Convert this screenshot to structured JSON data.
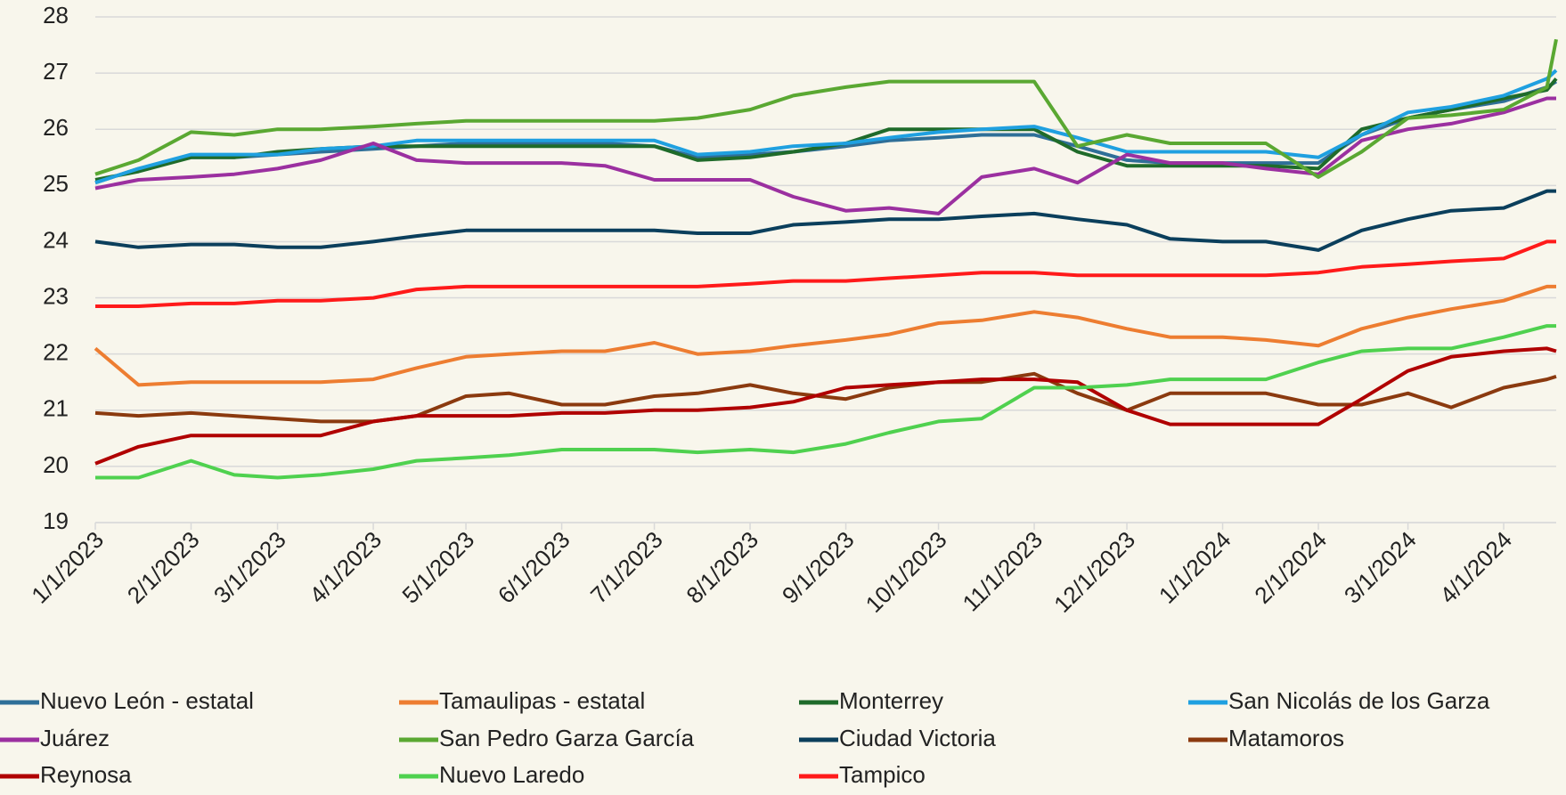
{
  "chart_data": {
    "type": "line",
    "x": [
      "1/1/2023",
      "1/15/2023",
      "2/1/2023",
      "2/15/2023",
      "3/1/2023",
      "3/15/2023",
      "4/1/2023",
      "4/15/2023",
      "5/1/2023",
      "5/15/2023",
      "6/1/2023",
      "6/15/2023",
      "7/1/2023",
      "7/15/2023",
      "8/1/2023",
      "8/15/2023",
      "9/1/2023",
      "9/15/2023",
      "10/1/2023",
      "10/15/2023",
      "11/1/2023",
      "11/15/2023",
      "12/1/2023",
      "12/15/2023",
      "1/1/2024",
      "1/15/2024",
      "2/1/2024",
      "2/15/2024",
      "3/1/2024",
      "3/15/2024",
      "4/1/2024",
      "4/15/2024",
      "4/18/2024"
    ],
    "xlim": [
      "1/1/2023",
      "4/18/2024"
    ],
    "xticks": [
      "1/1/2023",
      "2/1/2023",
      "3/1/2023",
      "4/1/2023",
      "5/1/2023",
      "6/1/2023",
      "7/1/2023",
      "8/1/2023",
      "9/1/2023",
      "10/1/2023",
      "11/1/2023",
      "12/1/2023",
      "1/1/2024",
      "2/1/2024",
      "3/1/2024",
      "4/1/2024"
    ],
    "ylim": [
      19,
      28
    ],
    "yticks": [
      19,
      20,
      21,
      22,
      23,
      24,
      25,
      26,
      27,
      28
    ],
    "grid": true,
    "legend": "bottom",
    "series": [
      {
        "name": "Nuevo León - estatal",
        "color": "#2f6f98",
        "values": [
          25.05,
          25.3,
          25.5,
          25.5,
          25.55,
          25.6,
          25.65,
          25.7,
          25.75,
          25.75,
          25.75,
          25.75,
          25.7,
          25.5,
          25.55,
          25.6,
          25.7,
          25.8,
          25.85,
          25.9,
          25.9,
          25.7,
          25.45,
          25.4,
          25.4,
          25.4,
          25.4,
          25.9,
          26.2,
          26.35,
          26.5,
          26.75,
          26.85
        ]
      },
      {
        "name": "Tamaulipas - estatal",
        "color": "#ed7d31",
        "values": [
          22.1,
          21.45,
          21.5,
          21.5,
          21.5,
          21.5,
          21.55,
          21.75,
          21.95,
          22.0,
          22.05,
          22.05,
          22.2,
          22.0,
          22.05,
          22.15,
          22.25,
          22.35,
          22.55,
          22.6,
          22.75,
          22.65,
          22.45,
          22.3,
          22.3,
          22.25,
          22.15,
          22.45,
          22.65,
          22.8,
          22.95,
          23.2,
          23.2
        ]
      },
      {
        "name": "Monterrey",
        "color": "#1f6b2a",
        "values": [
          25.1,
          25.25,
          25.5,
          25.5,
          25.6,
          25.65,
          25.7,
          25.7,
          25.7,
          25.7,
          25.7,
          25.7,
          25.7,
          25.45,
          25.5,
          25.6,
          25.75,
          26.0,
          26.0,
          26.0,
          26.0,
          25.6,
          25.35,
          25.35,
          25.35,
          25.35,
          25.3,
          26.0,
          26.2,
          26.35,
          26.55,
          26.7,
          26.9
        ]
      },
      {
        "name": "San Nicolás de los Garza",
        "color": "#1fa0e0",
        "values": [
          25.05,
          25.3,
          25.55,
          25.55,
          25.55,
          25.65,
          25.7,
          25.8,
          25.8,
          25.8,
          25.8,
          25.8,
          25.8,
          25.55,
          25.6,
          25.7,
          25.75,
          25.85,
          25.95,
          26.0,
          26.05,
          25.85,
          25.6,
          25.6,
          25.6,
          25.6,
          25.5,
          25.9,
          26.3,
          26.4,
          26.6,
          26.9,
          27.05
        ]
      },
      {
        "name": "Juárez",
        "color": "#9b30a0",
        "values": [
          24.95,
          25.1,
          25.15,
          25.2,
          25.3,
          25.45,
          25.75,
          25.45,
          25.4,
          25.4,
          25.4,
          25.35,
          25.1,
          25.1,
          25.1,
          24.8,
          24.55,
          24.6,
          24.5,
          25.15,
          25.3,
          25.05,
          25.55,
          25.4,
          25.4,
          25.3,
          25.2,
          25.8,
          26.0,
          26.1,
          26.3,
          26.55,
          26.55
        ]
      },
      {
        "name": "San Pedro Garza García",
        "color": "#5aa832",
        "values": [
          25.2,
          25.45,
          25.95,
          25.9,
          26.0,
          26.0,
          26.05,
          26.1,
          26.15,
          26.15,
          26.15,
          26.15,
          26.15,
          26.2,
          26.35,
          26.6,
          26.75,
          26.85,
          26.85,
          26.85,
          26.85,
          25.7,
          25.9,
          25.75,
          25.75,
          25.75,
          25.15,
          25.6,
          26.2,
          26.25,
          26.35,
          26.75,
          27.6
        ]
      },
      {
        "name": "Ciudad Victoria",
        "color": "#0b3f5c",
        "values": [
          24.0,
          23.9,
          23.95,
          23.95,
          23.9,
          23.9,
          24.0,
          24.1,
          24.2,
          24.2,
          24.2,
          24.2,
          24.2,
          24.15,
          24.15,
          24.3,
          24.35,
          24.4,
          24.4,
          24.45,
          24.5,
          24.4,
          24.3,
          24.05,
          24.0,
          24.0,
          23.85,
          24.2,
          24.4,
          24.55,
          24.6,
          24.9,
          24.9
        ]
      },
      {
        "name": "Matamoros",
        "color": "#8b3a0f",
        "values": [
          20.95,
          20.9,
          20.95,
          20.9,
          20.85,
          20.8,
          20.8,
          20.9,
          21.25,
          21.3,
          21.1,
          21.1,
          21.25,
          21.3,
          21.45,
          21.3,
          21.2,
          21.4,
          21.5,
          21.5,
          21.65,
          21.3,
          21.0,
          21.3,
          21.3,
          21.3,
          21.1,
          21.1,
          21.3,
          21.05,
          21.4,
          21.55,
          21.6
        ]
      },
      {
        "name": "Reynosa",
        "color": "#b00000",
        "values": [
          20.05,
          20.35,
          20.55,
          20.55,
          20.55,
          20.55,
          20.8,
          20.9,
          20.9,
          20.9,
          20.95,
          20.95,
          21.0,
          21.0,
          21.05,
          21.15,
          21.4,
          21.45,
          21.5,
          21.55,
          21.55,
          21.5,
          21.0,
          20.75,
          20.75,
          20.75,
          20.75,
          21.2,
          21.7,
          21.95,
          22.05,
          22.1,
          22.05
        ]
      },
      {
        "name": "Nuevo Laredo",
        "color": "#4fd14f",
        "values": [
          19.8,
          19.8,
          20.1,
          19.85,
          19.8,
          19.85,
          19.95,
          20.1,
          20.15,
          20.2,
          20.3,
          20.3,
          20.3,
          20.25,
          20.3,
          20.25,
          20.4,
          20.6,
          20.8,
          20.85,
          21.4,
          21.4,
          21.45,
          21.55,
          21.55,
          21.55,
          21.85,
          22.05,
          22.1,
          22.1,
          22.3,
          22.5,
          22.5
        ]
      },
      {
        "name": "Tampico",
        "color": "#ff1a1a",
        "values": [
          22.85,
          22.85,
          22.9,
          22.9,
          22.95,
          22.95,
          23.0,
          23.15,
          23.2,
          23.2,
          23.2,
          23.2,
          23.2,
          23.2,
          23.25,
          23.3,
          23.3,
          23.35,
          23.4,
          23.45,
          23.45,
          23.4,
          23.4,
          23.4,
          23.4,
          23.4,
          23.45,
          23.55,
          23.6,
          23.65,
          23.7,
          24.0,
          24.0
        ]
      }
    ]
  }
}
